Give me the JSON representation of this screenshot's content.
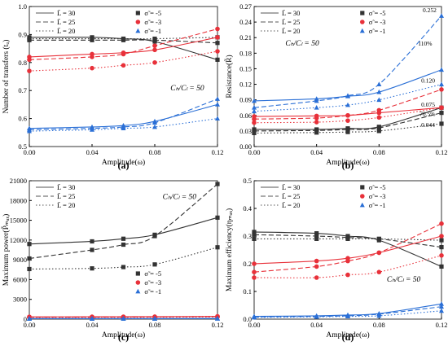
{
  "chart_data": [
    {
      "type": "line",
      "panel_label": "(a)",
      "xlabel": "Amplitude(ω)",
      "ylabel": "Number of transfers (tᵤ)",
      "xlim": [
        0.0,
        0.12
      ],
      "ylim": [
        0.5,
        1.0
      ],
      "xticks": [
        "0.00",
        "0.04",
        "0.08",
        "0.12"
      ],
      "yticks": [
        "0.5",
        "0.6",
        "0.7",
        "0.8",
        "0.9",
        "1.0"
      ],
      "annotations": [
        {
          "text": "Cₕ/Cₗ = 50",
          "x": 0.09,
          "y": 0.7
        }
      ],
      "legend": {
        "lines": [
          {
            "label": "L̄ = 30",
            "dash": "solid"
          },
          {
            "label": "L̄ = 25",
            "dash": "dashed"
          },
          {
            "label": "L̄ = 20",
            "dash": "dotted"
          }
        ],
        "markers": [
          {
            "label": "σ̃ = -5",
            "color": "#333333",
            "marker": "square"
          },
          {
            "label": "σ̃ = -3",
            "color": "#e8313a",
            "marker": "circle"
          },
          {
            "label": "σ̃ = -1",
            "color": "#2a6fd6",
            "marker": "triangle"
          }
        ],
        "placement": "top"
      },
      "x": [
        0.0,
        0.04,
        0.06,
        0.08,
        0.12
      ],
      "series": [
        {
          "color": "#333333",
          "marker": "square",
          "dash": "solid",
          "values": [
            0.89,
            0.89,
            0.885,
            0.875,
            0.81
          ]
        },
        {
          "color": "#333333",
          "marker": "square",
          "dash": "dashed",
          "values": [
            0.88,
            0.88,
            0.88,
            0.88,
            0.87
          ]
        },
        {
          "color": "#333333",
          "marker": "square",
          "dash": "dotted",
          "values": [
            0.885,
            0.885,
            0.885,
            0.885,
            0.89
          ]
        },
        {
          "color": "#e8313a",
          "marker": "circle",
          "dash": "solid",
          "values": [
            0.82,
            0.83,
            0.835,
            0.845,
            0.89
          ]
        },
        {
          "color": "#e8313a",
          "marker": "circle",
          "dash": "dashed",
          "values": [
            0.81,
            0.82,
            0.83,
            0.86,
            0.92
          ]
        },
        {
          "color": "#e8313a",
          "marker": "circle",
          "dash": "dotted",
          "values": [
            0.77,
            0.78,
            0.79,
            0.8,
            0.84
          ]
        },
        {
          "color": "#2a6fd6",
          "marker": "triangle",
          "dash": "solid",
          "values": [
            0.565,
            0.57,
            0.575,
            0.59,
            0.65
          ]
        },
        {
          "color": "#2a6fd6",
          "marker": "triangle",
          "dash": "dashed",
          "values": [
            0.56,
            0.565,
            0.57,
            0.585,
            0.67
          ]
        },
        {
          "color": "#2a6fd6",
          "marker": "triangle",
          "dash": "dotted",
          "values": [
            0.555,
            0.56,
            0.565,
            0.57,
            0.6
          ]
        }
      ]
    },
    {
      "type": "line",
      "panel_label": "(b)",
      "xlabel": "Amplitude(ω)",
      "ylabel": "Resistance(R̃)",
      "xlim": [
        0.0,
        0.12
      ],
      "ylim": [
        0.0,
        0.27
      ],
      "xticks": [
        "0.00",
        "0.04",
        "0.08",
        "0.12"
      ],
      "yticks": [
        "0.00",
        "0.03",
        "0.06",
        "0.09",
        "0.12",
        "0.15",
        "0.18",
        "0.21",
        "0.24",
        "0.27"
      ],
      "annotations": [
        {
          "text": "Cₕ/Cₗ = 50",
          "x": 0.02,
          "y": 0.195
        },
        {
          "text": "0.252",
          "x": 0.108,
          "y": 0.259
        },
        {
          "text": "110%",
          "x": 0.105,
          "y": 0.195
        },
        {
          "text": "0.120",
          "x": 0.107,
          "y": 0.123
        },
        {
          "text": "0.075",
          "x": 0.107,
          "y": 0.077
        },
        {
          "text": "70.5%",
          "x": 0.106,
          "y": 0.059
        },
        {
          "text": "0.044",
          "x": 0.107,
          "y": 0.038
        }
      ],
      "legend": {
        "lines": [
          {
            "label": "L̄ = 30",
            "dash": "solid"
          },
          {
            "label": "L̄ = 25",
            "dash": "dashed"
          },
          {
            "label": "L̄ = 20",
            "dash": "dotted"
          }
        ],
        "markers": [
          {
            "label": "σ̃ = -5",
            "color": "#333333",
            "marker": "square"
          },
          {
            "label": "σ̃ = -3",
            "color": "#e8313a",
            "marker": "circle"
          },
          {
            "label": "σ̃ = -1",
            "color": "#2a6fd6",
            "marker": "triangle"
          }
        ],
        "placement": "top"
      },
      "x": [
        0.0,
        0.04,
        0.06,
        0.08,
        0.12
      ],
      "series": [
        {
          "color": "#333333",
          "marker": "square",
          "dash": "solid",
          "values": [
            0.033,
            0.033,
            0.035,
            0.038,
            0.075
          ]
        },
        {
          "color": "#333333",
          "marker": "square",
          "dash": "dashed",
          "values": [
            0.03,
            0.031,
            0.033,
            0.036,
            0.065
          ]
        },
        {
          "color": "#333333",
          "marker": "square",
          "dash": "dotted",
          "values": [
            0.026,
            0.027,
            0.028,
            0.03,
            0.044
          ]
        },
        {
          "color": "#e8313a",
          "marker": "circle",
          "dash": "solid",
          "values": [
            0.058,
            0.059,
            0.06,
            0.065,
            0.075
          ]
        },
        {
          "color": "#e8313a",
          "marker": "circle",
          "dash": "dashed",
          "values": [
            0.053,
            0.055,
            0.06,
            0.07,
            0.11
          ]
        },
        {
          "color": "#e8313a",
          "marker": "circle",
          "dash": "dotted",
          "values": [
            0.046,
            0.047,
            0.05,
            0.056,
            0.075
          ]
        },
        {
          "color": "#2a6fd6",
          "marker": "triangle",
          "dash": "solid",
          "values": [
            0.088,
            0.092,
            0.097,
            0.105,
            0.148
          ]
        },
        {
          "color": "#2a6fd6",
          "marker": "triangle",
          "dash": "dashed",
          "values": [
            0.075,
            0.088,
            0.098,
            0.12,
            0.252
          ]
        },
        {
          "color": "#2a6fd6",
          "marker": "triangle",
          "dash": "dotted",
          "values": [
            0.068,
            0.075,
            0.08,
            0.09,
            0.12
          ]
        }
      ]
    },
    {
      "type": "line",
      "panel_label": "(c)",
      "xlabel": "Amplitude(ω)",
      "ylabel": "Maximum power(P̃ₘₐₓ)",
      "xlim": [
        0.0,
        0.12
      ],
      "ylim": [
        0,
        21000
      ],
      "xticks": [
        "0.00",
        "0.04",
        "0.08",
        "0.12"
      ],
      "yticks": [
        "0",
        "3000",
        "6000",
        "9000",
        "12000",
        "15000",
        "18000",
        "21000"
      ],
      "annotations": [
        {
          "text": "Cₕ/Cₗ = 50",
          "x": 0.085,
          "y": 18200
        }
      ],
      "legend": {
        "lines": [
          {
            "label": "L̄ = 30",
            "dash": "solid"
          },
          {
            "label": "L̄ = 25",
            "dash": "dashed"
          },
          {
            "label": "L̄ = 20",
            "dash": "dotted"
          }
        ],
        "markers": [
          {
            "label": "σ̃ = -5",
            "color": "#333333",
            "marker": "square"
          },
          {
            "label": "σ̃ = -3",
            "color": "#e8313a",
            "marker": "circle"
          },
          {
            "label": "σ̃ = -1",
            "color": "#2a6fd6",
            "marker": "triangle"
          }
        ],
        "placement": "split"
      },
      "x": [
        0.0,
        0.04,
        0.06,
        0.08,
        0.12
      ],
      "series": [
        {
          "color": "#333333",
          "marker": "square",
          "dash": "solid",
          "values": [
            11400,
            11800,
            12200,
            12800,
            15400
          ]
        },
        {
          "color": "#333333",
          "marker": "square",
          "dash": "dashed",
          "values": [
            9200,
            10500,
            11300,
            12600,
            20500
          ]
        },
        {
          "color": "#333333",
          "marker": "square",
          "dash": "dotted",
          "values": [
            7600,
            7700,
            7900,
            8300,
            10900
          ]
        },
        {
          "color": "#e8313a",
          "marker": "circle",
          "dash": "solid",
          "values": [
            350,
            360,
            370,
            380,
            420
          ]
        },
        {
          "color": "#e8313a",
          "marker": "circle",
          "dash": "dashed",
          "values": [
            300,
            310,
            320,
            340,
            400
          ]
        },
        {
          "color": "#e8313a",
          "marker": "circle",
          "dash": "dotted",
          "values": [
            250,
            260,
            270,
            280,
            320
          ]
        },
        {
          "color": "#2a6fd6",
          "marker": "triangle",
          "dash": "solid",
          "values": [
            80,
            82,
            84,
            86,
            100
          ]
        },
        {
          "color": "#2a6fd6",
          "marker": "triangle",
          "dash": "dashed",
          "values": [
            70,
            72,
            74,
            76,
            95
          ]
        },
        {
          "color": "#2a6fd6",
          "marker": "triangle",
          "dash": "dotted",
          "values": [
            60,
            62,
            64,
            66,
            80
          ]
        }
      ]
    },
    {
      "type": "line",
      "panel_label": "(d)",
      "xlabel": "Amplitude(ω)",
      "ylabel": "Maximum efficiency(ηₘₐₓ)",
      "xlim": [
        0.0,
        0.12
      ],
      "ylim": [
        0.0,
        0.5
      ],
      "xticks": [
        "0.00",
        "0.04",
        "0.08",
        "0.12"
      ],
      "yticks": [
        "0.0",
        "0.1",
        "0.2",
        "0.3",
        "0.4",
        "0.5"
      ],
      "annotations": [
        {
          "text": "Cₕ/Cₗ = 50",
          "x": 0.085,
          "y": 0.135
        }
      ],
      "legend": {
        "lines": [
          {
            "label": "L̄ = 30",
            "dash": "solid"
          },
          {
            "label": "L̄ = 25",
            "dash": "dashed"
          },
          {
            "label": "L̄ = 20",
            "dash": "dotted"
          }
        ],
        "markers": [
          {
            "label": "σ̃ = -5",
            "color": "#333333",
            "marker": "square"
          },
          {
            "label": "σ̃ = -3",
            "color": "#e8313a",
            "marker": "circle"
          },
          {
            "label": "σ̃ = -1",
            "color": "#2a6fd6",
            "marker": "triangle"
          }
        ],
        "placement": "top"
      },
      "x": [
        0.0,
        0.04,
        0.06,
        0.08,
        0.12
      ],
      "series": [
        {
          "color": "#333333",
          "marker": "square",
          "dash": "solid",
          "values": [
            0.315,
            0.31,
            0.3,
            0.285,
            0.19
          ]
        },
        {
          "color": "#333333",
          "marker": "square",
          "dash": "dashed",
          "values": [
            0.305,
            0.3,
            0.295,
            0.29,
            0.26
          ]
        },
        {
          "color": "#333333",
          "marker": "square",
          "dash": "dotted",
          "values": [
            0.29,
            0.29,
            0.29,
            0.29,
            0.285
          ]
        },
        {
          "color": "#e8313a",
          "marker": "circle",
          "dash": "solid",
          "values": [
            0.2,
            0.21,
            0.22,
            0.24,
            0.3
          ]
        },
        {
          "color": "#e8313a",
          "marker": "circle",
          "dash": "dashed",
          "values": [
            0.17,
            0.19,
            0.21,
            0.24,
            0.345
          ]
        },
        {
          "color": "#e8313a",
          "marker": "circle",
          "dash": "dotted",
          "values": [
            0.15,
            0.15,
            0.16,
            0.17,
            0.23
          ]
        },
        {
          "color": "#2a6fd6",
          "marker": "triangle",
          "dash": "solid",
          "values": [
            0.01,
            0.012,
            0.015,
            0.02,
            0.055
          ]
        },
        {
          "color": "#2a6fd6",
          "marker": "triangle",
          "dash": "dashed",
          "values": [
            0.008,
            0.01,
            0.012,
            0.018,
            0.045
          ]
        },
        {
          "color": "#2a6fd6",
          "marker": "triangle",
          "dash": "dotted",
          "values": [
            0.006,
            0.008,
            0.01,
            0.012,
            0.03
          ]
        }
      ]
    }
  ]
}
